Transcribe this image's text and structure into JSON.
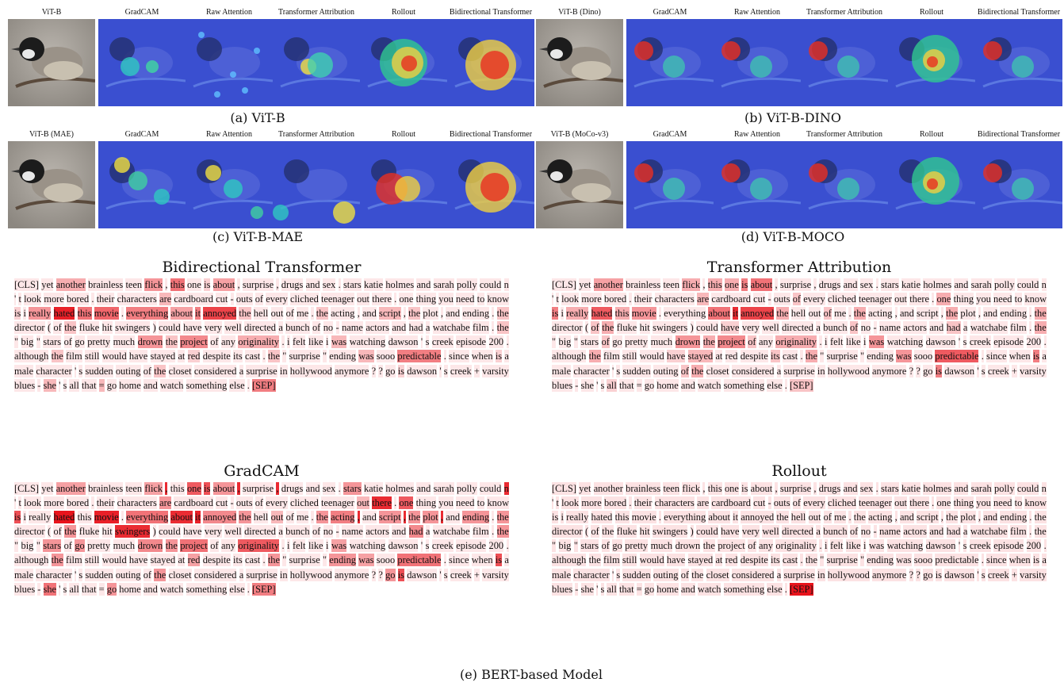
{
  "image_labels": {
    "vitb": [
      "ViT-B",
      "GradCAM",
      "Raw Attention",
      "Transformer Attribution",
      "Rollout",
      "Bidirectional Transformer"
    ],
    "dino": [
      "ViT-B (Dino)",
      "GradCAM",
      "Raw Attention",
      "Transformer Attribution",
      "Rollout",
      "Bidirectional Transformer"
    ],
    "mae": [
      "ViT-B (MAE)",
      "GradCAM",
      "Raw Attention",
      "Transformer Attribution",
      "Rollout",
      "Bidirectional Transformer"
    ],
    "moco": [
      "ViT-B (MoCo-v3)",
      "GradCAM",
      "Raw Attention",
      "Transformer Attribution",
      "Rollout",
      "Bidirectional Transformer"
    ]
  },
  "captions": {
    "a": "(a) ViT-B",
    "b": "(b) ViT-B-DINO",
    "c": "(c) ViT-B-MAE",
    "d": "(d) ViT-B-MOCO",
    "e": "(e) BERT-based Model"
  },
  "text_blocks": [
    {
      "title": "Bidirectional Transformer",
      "highlights": {
        "another": 0.35,
        "less": 0.55,
        "flick": 0.45,
        "is": 0.2,
        "are": 0.3,
        "really": 0.45,
        "hated": 0.95,
        "this": 0.6,
        "movie": 0.65,
        "everything": 0.55,
        "about": 0.4,
        "it": 0.55,
        "annoyed": 0.8,
        "script": 0.3,
        "drown": 0.45,
        "the": 0.25,
        "project": 0.5,
        "originality": 0.35,
        "red": 0.2,
        "was": 0.3,
        "predictable": 0.55,
        "SEP": 0.55,
        "she": 0.3,
        "=": 0.3
      }
    },
    {
      "title": "Transformer Attribution",
      "highlights": {
        "another": 0.4,
        "less": 0.7,
        "flick": 0.35,
        "this": 0.35,
        "one": 0.35,
        "is": 0.55,
        "are": 0.3,
        "really": 0.35,
        "hated": 0.7,
        "movie": 0.45,
        "about": 0.6,
        "it": 0.9,
        "annoyed": 0.8,
        "the": 0.35,
        "have": 0.2,
        "had": 0.25,
        "of": 0.25,
        "drown": 0.45,
        "project": 0.5,
        "originality": 0.35,
        "stayed": 0.3,
        "its": 0.25,
        "was": 0.45,
        "predictable": 0.7,
        "all": 0.2,
        "SEP": 0.25
      }
    },
    {
      "title": "GradCAM",
      "highlights": {
        "another": 0.4,
        "flick": 0.4,
        "one": 0.7,
        "is": 0.75,
        "about": 0.45,
        ",": 0.9,
        "n": 0.9,
        "are": 0.45,
        "there": 0.9,
        "hated": 1.0,
        "movie": 0.95,
        "everything": 0.6,
        "about2": 0.9,
        "it": 0.95,
        "annoyed": 0.5,
        "out": 0.3,
        "the": 0.45,
        "acting": 0.55,
        "script": 0.45,
        "plot": 0.45,
        "ending": 0.45,
        "swingers": 0.9,
        "had": 0.5,
        "abe": 0.4,
        "stars": 0.45,
        "go": 0.45,
        "drown": 0.5,
        "project": 0.6,
        "originality": 0.7,
        "red": 0.4,
        "was": 0.4,
        "predictable": 0.6,
        "SEP": 0.55,
        "she": 0.6
      }
    },
    {
      "title": "Rollout",
      "highlights": {
        "SEP": 1.0
      }
    }
  ],
  "passage": "[CLS] yet another brainless teen flick , this one is about , surprise , drugs and sex . stars katie holmes and sarah polly could n ' t look more bored . their characters are cardboard cut - outs of every cliched teenager out there . one thing you need to know is i really hated this movie . everything about it annoyed the hell out of me . the acting , and script , the plot , and ending . the director ( of the fluke hit swingers ) could have very well directed a bunch of no - name actors and had a watchabe film . the \" big \" stars of go pretty much drown the project of any originality . i felt like i was watching dawson ' s creek episode 200 . although the film still would have stayed at red despite its cast . the \" surprise \" ending was sooo predictable . since when is a male character ' s sudden outing of the closet considered a surprise in hollywood anymore ? ? go is dawson ' s creek + varsity blues - she ' s all that = go home and watch something else . [SEP]",
  "colors": {
    "highlight": "#e8141c"
  }
}
